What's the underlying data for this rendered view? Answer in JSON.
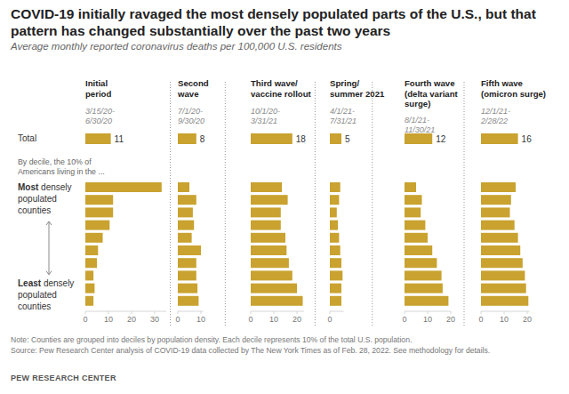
{
  "chart_data": {
    "type": "bar",
    "orientation": "horizontal",
    "title": "COVID-19 initially ravaged the most densely populated parts of the U.S., but that pattern has changed substantially over the past two years",
    "subtitle": "Average monthly reported coronavirus deaths per 100,000 U.S. residents",
    "category_intro": "By decile, the 10% of\nAmericans living in the ...",
    "total_label": "Total",
    "categories": [
      "Most densely populated counties",
      null,
      null,
      null,
      null,
      null,
      null,
      null,
      null,
      "Least densely populated counties"
    ],
    "series": [
      {
        "name": "Initial\nperiod",
        "period": "3/15/20-\n6/30/20",
        "color": "#c9a22f",
        "total": 11,
        "values": [
          33,
          12,
          12,
          10.5,
          7.5,
          5.5,
          5,
          3.5,
          4,
          3.5
        ],
        "xlim": [
          0,
          35
        ],
        "xticks": [
          0,
          10,
          20,
          30
        ]
      },
      {
        "name": "Second\nwave",
        "period": "7/1/20-\n9/30/20",
        "color": "#c9a22f",
        "total": 8,
        "values": [
          5,
          8,
          6.5,
          7,
          6,
          10,
          8,
          8,
          8.5,
          9
        ],
        "xlim": [
          0,
          11
        ],
        "xticks": [
          0,
          10
        ]
      },
      {
        "name": "Third wave/\nvaccine rollout",
        "period": "10/1/20-\n3/31/21",
        "color": "#c9a22f",
        "total": 18,
        "values": [
          13.5,
          16,
          13,
          13,
          15,
          15.5,
          16.5,
          18,
          20,
          22.5
        ],
        "xlim": [
          0,
          23
        ],
        "xticks": [
          0,
          10,
          20
        ]
      },
      {
        "name": "Spring/\nsummer 2021",
        "period": "4/1/21-\n7/31/21",
        "color": "#c9a22f",
        "total": 5,
        "values": [
          4.5,
          4,
          3,
          3.5,
          4,
          4.5,
          5,
          5.5,
          5,
          5
        ],
        "xlim": [
          0,
          6
        ],
        "xticks": [
          0
        ]
      },
      {
        "name": "Fourth wave\n(delta variant\nsurge)",
        "period": "8/1/21-\n11/30/21",
        "color": "#c9a22f",
        "total": 12,
        "values": [
          5,
          7.5,
          7,
          9,
          10,
          12,
          14,
          16,
          16.5,
          19
        ],
        "xlim": [
          0,
          20
        ],
        "xticks": [
          0,
          10,
          20
        ]
      },
      {
        "name": "Fifth wave\n(omicron surge)",
        "period": "12/1/21-\n2/28/22",
        "color": "#c9a22f",
        "total": 16,
        "values": [
          15,
          13,
          12.5,
          14.5,
          16,
          17,
          18,
          19,
          19.5,
          20.5
        ],
        "xlim": [
          0,
          21
        ],
        "xticks": [
          0,
          10,
          20
        ]
      }
    ],
    "note": "Note: Counties are grouped into deciles by population density. Each decile represents 10% of the total U.S. population.",
    "source": "Source: Pew Research Center analysis of COVID-19 data collected by The New York Times as of Feb. 28, 2022. See methodology for details.",
    "credit": "PEW RESEARCH CENTER"
  }
}
